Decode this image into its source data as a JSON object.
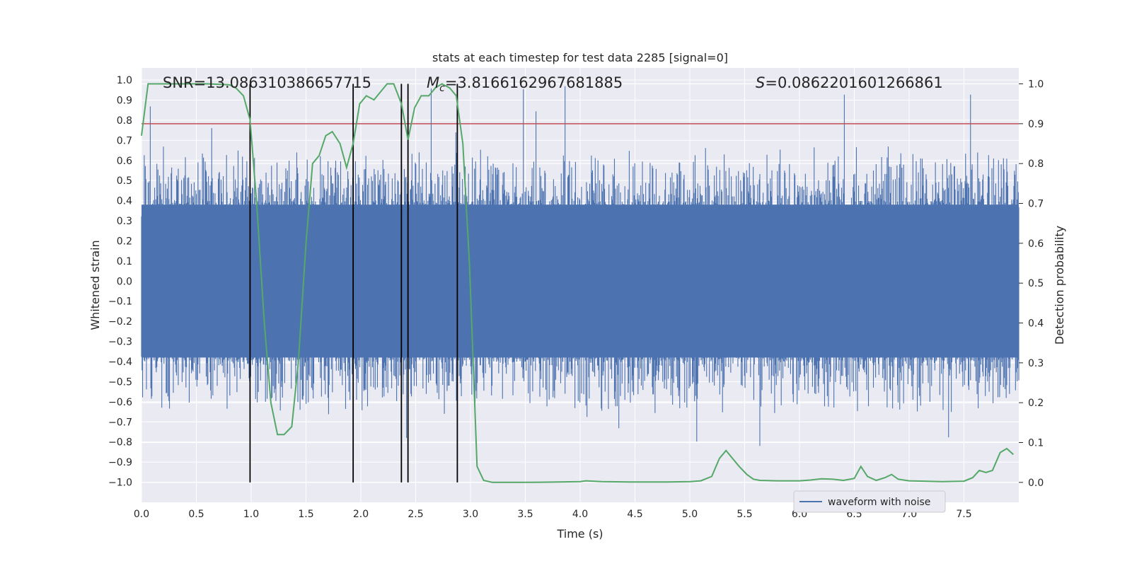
{
  "chart_data": {
    "type": "line",
    "title": "stats at each timestep for test data 2285 [signal=0]",
    "xlabel": "Time (s)",
    "ylabel_left": "Whitened strain",
    "ylabel_right": "Detection probability",
    "xlim": [
      0,
      8
    ],
    "ylim_left": [
      -1.1,
      1.06
    ],
    "ylim_right": [
      -0.05,
      1.04
    ],
    "x_ticks": [
      "0.0",
      "0.5",
      "1.0",
      "1.5",
      "2.0",
      "2.5",
      "3.0",
      "3.5",
      "4.0",
      "4.5",
      "5.0",
      "5.5",
      "6.0",
      "6.5",
      "7.0",
      "7.5"
    ],
    "x_tick_values": [
      0,
      0.5,
      1,
      1.5,
      2,
      2.5,
      3,
      3.5,
      4,
      4.5,
      5,
      5.5,
      6,
      6.5,
      7,
      7.5
    ],
    "y_left_ticks": [
      "1.0",
      "0.9",
      "0.8",
      "0.7",
      "0.6",
      "0.5",
      "0.4",
      "0.3",
      "0.2",
      "0.1",
      "0.0",
      "−0.1",
      "−0.2",
      "−0.3",
      "−0.4",
      "−0.5",
      "−0.6",
      "−0.7",
      "−0.8",
      "−0.9",
      "−1.0"
    ],
    "y_left_tick_values": [
      1.0,
      0.9,
      0.8,
      0.7,
      0.6,
      0.5,
      0.4,
      0.3,
      0.2,
      0.1,
      0.0,
      -0.1,
      -0.2,
      -0.3,
      -0.4,
      -0.5,
      -0.6,
      -0.7,
      -0.8,
      -0.9,
      -1.0
    ],
    "y_right_ticks": [
      "1.0",
      "0.9",
      "0.8",
      "0.7",
      "0.6",
      "0.5",
      "0.4",
      "0.3",
      "0.2",
      "0.1",
      "0.0"
    ],
    "y_right_tick_values": [
      1.0,
      0.9,
      0.8,
      0.7,
      0.6,
      0.5,
      0.4,
      0.3,
      0.2,
      0.1,
      0.0
    ],
    "annotations": {
      "snr": "SNR=13.086310386657715",
      "mc_symbol": "M",
      "mc_subscript": "c",
      "mc_value": "=3.8166162967681885",
      "s_symbol": "S",
      "s_value": "=0.0862201601266861"
    },
    "threshold_right": 0.9,
    "vertical_lines_x": [
      0.99,
      1.93,
      2.37,
      2.43,
      2.88
    ],
    "waveform": {
      "name": "waveform with noise",
      "typical_amplitude": 0.38,
      "peak_max": 0.97,
      "peak_min": -0.93,
      "samples": 1600
    },
    "detection_probability": {
      "x": [
        0.0,
        0.06,
        0.2,
        0.4,
        0.6,
        0.8,
        0.86,
        0.93,
        0.99,
        1.05,
        1.12,
        1.18,
        1.24,
        1.3,
        1.37,
        1.43,
        1.5,
        1.56,
        1.62,
        1.68,
        1.74,
        1.81,
        1.87,
        1.93,
        1.99,
        2.05,
        2.12,
        2.18,
        2.24,
        2.3,
        2.37,
        2.43,
        2.49,
        2.55,
        2.62,
        2.68,
        2.74,
        2.81,
        2.87,
        2.93,
        2.99,
        3.06,
        3.12,
        3.2,
        3.5,
        3.8,
        4.0,
        4.05,
        4.2,
        4.5,
        4.8,
        5.0,
        5.1,
        5.2,
        5.27,
        5.33,
        5.39,
        5.45,
        5.52,
        5.58,
        5.64,
        5.8,
        6.0,
        6.1,
        6.2,
        6.3,
        6.4,
        6.5,
        6.56,
        6.62,
        6.7,
        6.78,
        6.84,
        6.9,
        7.0,
        7.3,
        7.5,
        7.58,
        7.64,
        7.7,
        7.76,
        7.83,
        7.89,
        7.95
      ],
      "y": [
        0.87,
        1.0,
        1.0,
        1.0,
        1.0,
        0.998,
        0.99,
        0.97,
        0.91,
        0.7,
        0.4,
        0.2,
        0.12,
        0.12,
        0.14,
        0.3,
        0.6,
        0.8,
        0.82,
        0.87,
        0.88,
        0.85,
        0.79,
        0.85,
        0.95,
        0.97,
        0.96,
        0.98,
        1.0,
        1.0,
        0.95,
        0.86,
        0.94,
        0.97,
        0.97,
        0.99,
        1.0,
        0.99,
        0.97,
        0.85,
        0.55,
        0.04,
        0.005,
        0.0,
        0.0,
        0.001,
        0.002,
        0.004,
        0.002,
        0.001,
        0.001,
        0.002,
        0.004,
        0.015,
        0.06,
        0.08,
        0.06,
        0.04,
        0.02,
        0.008,
        0.005,
        0.004,
        0.004,
        0.006,
        0.009,
        0.008,
        0.005,
        0.01,
        0.04,
        0.015,
        0.005,
        0.012,
        0.02,
        0.008,
        0.004,
        0.002,
        0.003,
        0.012,
        0.03,
        0.025,
        0.03,
        0.075,
        0.085,
        0.07
      ]
    },
    "legend_position": "lower-right",
    "grid": true,
    "colors": {
      "waveform": "#4c72b0",
      "probability": "#55a868",
      "threshold": "#c44e52",
      "vlines": "#000000",
      "plot_bg": "#eaeaf2",
      "grid": "#ffffff"
    }
  }
}
